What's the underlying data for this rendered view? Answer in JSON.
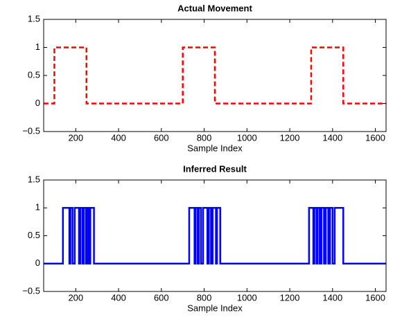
{
  "chart_data": [
    {
      "type": "line",
      "title": "Actual Movement",
      "x_label": "Sample Index",
      "xlim": [
        50,
        1650
      ],
      "xticks": [
        200,
        400,
        600,
        800,
        1000,
        1200,
        1400,
        1600
      ],
      "ylim": [
        -0.5,
        1.5
      ],
      "yticks": [
        {
          "value": -0.5,
          "label": "−0.5"
        },
        0,
        0.5,
        1,
        1.5
      ],
      "grid": false,
      "series": [
        {
          "color": "#ff0000",
          "dashed": true,
          "x": [
            50,
            100,
            100,
            250,
            250,
            700,
            700,
            850,
            850,
            1300,
            1300,
            1450,
            1450,
            1650
          ],
          "values": [
            0,
            0,
            1,
            1,
            0,
            0,
            1,
            1,
            0,
            0,
            1,
            1,
            0,
            0
          ]
        }
      ]
    },
    {
      "type": "line",
      "title": "Inferred Result",
      "x_label": "Sample Index",
      "xlim": [
        50,
        1650
      ],
      "xticks": [
        200,
        400,
        600,
        800,
        1000,
        1200,
        1400,
        1600
      ],
      "ylim": [
        -0.5,
        1.5
      ],
      "yticks": [
        {
          "value": -0.5,
          "label": "−0.5"
        },
        0,
        0.5,
        1,
        1.5
      ],
      "grid": false,
      "series": [
        {
          "color": "#0000ff",
          "dashed": false,
          "x": [
            50,
            140,
            140,
            170,
            170,
            175,
            175,
            185,
            185,
            195,
            195,
            215,
            215,
            222,
            222,
            232,
            232,
            238,
            238,
            248,
            248,
            255,
            255,
            262,
            262,
            268,
            268,
            285,
            285,
            730,
            730,
            755,
            755,
            760,
            760,
            770,
            770,
            775,
            775,
            785,
            785,
            795,
            795,
            815,
            815,
            822,
            822,
            832,
            832,
            840,
            840,
            855,
            855,
            860,
            860,
            875,
            875,
            1290,
            1290,
            1310,
            1310,
            1315,
            1315,
            1325,
            1325,
            1330,
            1330,
            1340,
            1340,
            1348,
            1348,
            1360,
            1360,
            1368,
            1368,
            1380,
            1380,
            1388,
            1388,
            1400,
            1400,
            1410,
            1410,
            1450,
            1450,
            1650
          ],
          "values": [
            0,
            0,
            1,
            1,
            0,
            0,
            1,
            1,
            0,
            0,
            1,
            1,
            0,
            0,
            1,
            1,
            0,
            0,
            1,
            1,
            0,
            0,
            1,
            1,
            0,
            0,
            1,
            1,
            0,
            0,
            1,
            1,
            0,
            0,
            1,
            1,
            0,
            0,
            1,
            1,
            0,
            0,
            1,
            1,
            0,
            0,
            1,
            1,
            0,
            0,
            1,
            1,
            0,
            0,
            1,
            1,
            0,
            0,
            1,
            1,
            0,
            0,
            1,
            1,
            0,
            0,
            1,
            1,
            0,
            0,
            1,
            1,
            0,
            0,
            1,
            1,
            0,
            0,
            1,
            1,
            0,
            0,
            1,
            1,
            0,
            0
          ]
        }
      ]
    }
  ]
}
